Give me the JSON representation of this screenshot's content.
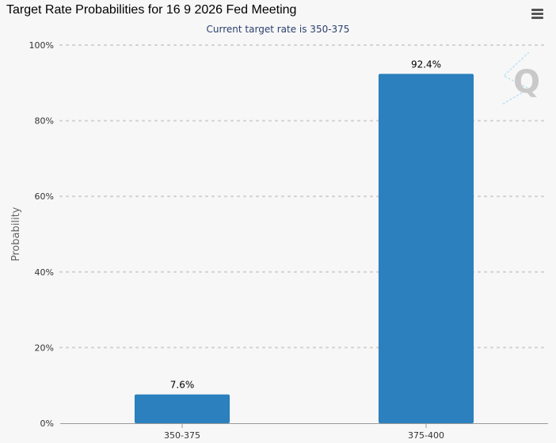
{
  "menu_icon": "hamburger-menu-icon",
  "watermark_icon": "q-logo-watermark",
  "colors": {
    "bar": "#2b80bd",
    "grid": "#d0d0d0",
    "axis": "#999999"
  },
  "chart_data": {
    "type": "bar",
    "title": "Target Rate Probabilities for 16 9 2026 Fed Meeting",
    "subtitle": "Current target rate is 350-375",
    "xlabel": "",
    "ylabel": "Probability",
    "categories": [
      "350-375",
      "375-400"
    ],
    "values": [
      7.6,
      92.4
    ],
    "data_labels": [
      "7.6%",
      "92.4%"
    ],
    "ylim": [
      0,
      100
    ],
    "yticks": [
      {
        "value": 0,
        "label": "0%"
      },
      {
        "value": 20,
        "label": "20%"
      },
      {
        "value": 40,
        "label": "40%"
      },
      {
        "value": 60,
        "label": "60%"
      },
      {
        "value": 80,
        "label": "80%"
      },
      {
        "value": 100,
        "label": "100%"
      }
    ],
    "grid": true,
    "legend": "none"
  }
}
